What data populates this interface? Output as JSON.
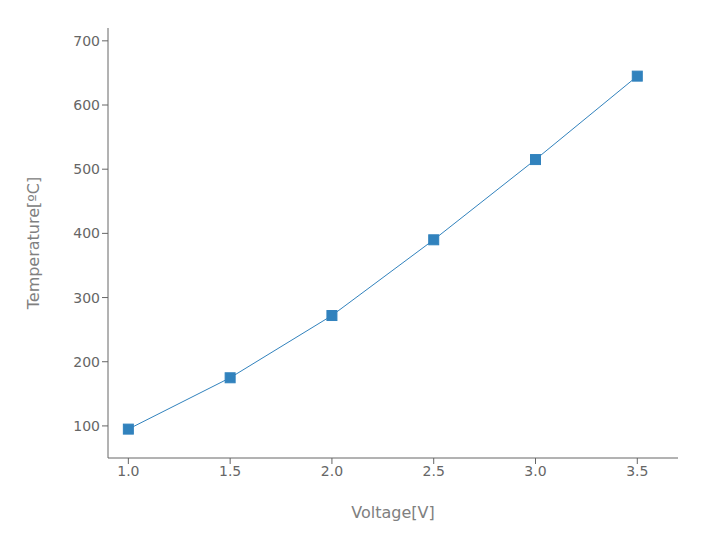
{
  "chart_data": {
    "type": "line",
    "x": [
      1.0,
      1.5,
      2.0,
      2.5,
      3.0,
      3.5
    ],
    "values": [
      95,
      175,
      272,
      390,
      515,
      645
    ],
    "xlabel": "Voltage[V]",
    "ylabel": "Temperature[ºC]",
    "xlim": [
      0.9,
      3.7
    ],
    "ylim": [
      50,
      720
    ],
    "xticks": [
      {
        "value": 1.0,
        "label": "1.0"
      },
      1.5,
      {
        "value": 2.0,
        "label": "2.0"
      },
      2.5,
      {
        "value": 3.0,
        "label": "3.0"
      },
      3.5
    ],
    "yticks": [
      100,
      200,
      300,
      400,
      500,
      600,
      700
    ],
    "marker": "square",
    "grid": false
  }
}
